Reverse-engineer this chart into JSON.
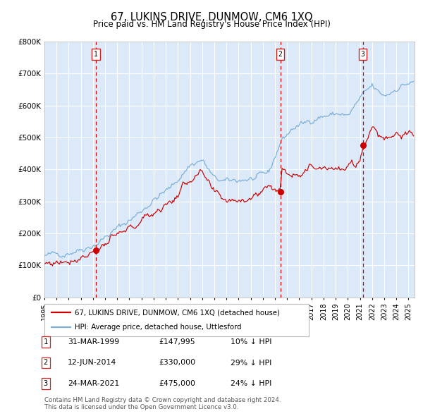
{
  "title": "67, LUKINS DRIVE, DUNMOW, CM6 1XQ",
  "subtitle": "Price paid vs. HM Land Registry's House Price Index (HPI)",
  "legend_label_red": "67, LUKINS DRIVE, DUNMOW, CM6 1XQ (detached house)",
  "legend_label_blue": "HPI: Average price, detached house, Uttlesford",
  "footer1": "Contains HM Land Registry data © Crown copyright and database right 2024.",
  "footer2": "This data is licensed under the Open Government Licence v3.0.",
  "table": [
    {
      "num": "1",
      "date": "31-MAR-1999",
      "price": "£147,995",
      "hpi": "10% ↓ HPI"
    },
    {
      "num": "2",
      "date": "12-JUN-2014",
      "price": "£330,000",
      "hpi": "29% ↓ HPI"
    },
    {
      "num": "3",
      "date": "24-MAR-2021",
      "price": "£475,000",
      "hpi": "24% ↓ HPI"
    }
  ],
  "sale_dates_decimal": [
    1999.24,
    2014.44,
    2021.23
  ],
  "sale_prices": [
    147995,
    330000,
    475000
  ],
  "ylim": [
    0,
    800000
  ],
  "yticks": [
    0,
    100000,
    200000,
    300000,
    400000,
    500000,
    600000,
    700000,
    800000
  ],
  "ytick_labels": [
    "£0",
    "£100K",
    "£200K",
    "£300K",
    "£400K",
    "£500K",
    "£600K",
    "£700K",
    "£800K"
  ],
  "xstart": 1995.0,
  "xend": 2025.5,
  "bg_color": "#dce9f8",
  "red_line_color": "#cc0000",
  "blue_line_color": "#7aaed6",
  "dashed_line_color": "#dd0000",
  "grid_color": "#ffffff",
  "title_fontsize": 11,
  "subtitle_fontsize": 9
}
